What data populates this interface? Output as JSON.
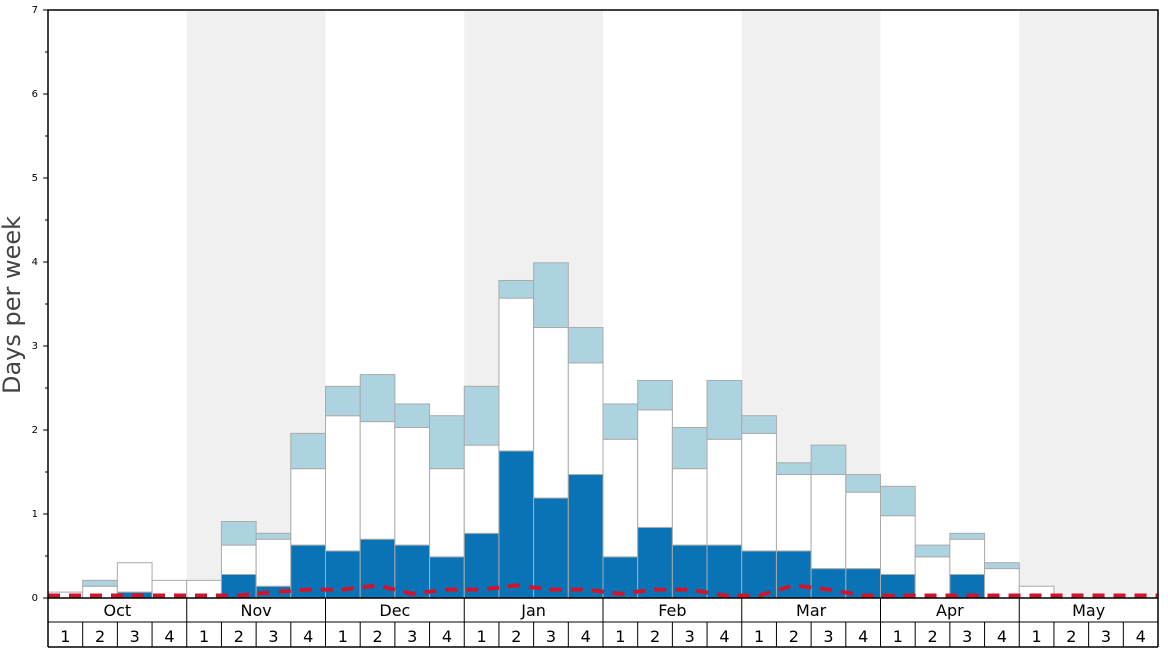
{
  "chart_data": {
    "type": "bar",
    "stacked": true,
    "ylabel": "Days per week",
    "ylim": [
      0,
      7
    ],
    "yticks": [
      "0",
      "1",
      "2",
      "3",
      "4",
      "5",
      "6",
      "7"
    ],
    "months": [
      "Oct",
      "Nov",
      "Dec",
      "Jan",
      "Feb",
      "Mar",
      "Apr",
      "May"
    ],
    "week_labels": [
      "1",
      "2",
      "3",
      "4"
    ],
    "shaded_months": [
      "Nov",
      "Jan",
      "Mar",
      "May"
    ],
    "colors": {
      "dark": "#0a73b5",
      "white": "#ffffff",
      "light": "#aed3e0",
      "dashed": "#d0142c",
      "shade": "#f0f0f0",
      "bar_border": "#aaaaaa"
    },
    "series": [
      {
        "values": [
          0,
          0,
          0.07,
          0,
          0,
          0.28,
          0.14,
          0.63,
          0.56,
          0.7,
          0.63,
          0.49,
          0.77,
          1.75,
          1.19,
          1.47,
          0.49,
          0.84,
          0.63,
          0.63,
          0.56,
          0.56,
          0.35,
          0.35,
          0.28,
          0,
          0.28,
          0,
          0,
          0,
          0,
          0
        ]
      },
      {
        "values": [
          0.07,
          0.14,
          0.35,
          0.21,
          0.21,
          0.35,
          0.56,
          0.91,
          1.61,
          1.4,
          1.4,
          1.05,
          1.05,
          1.82,
          2.03,
          1.33,
          1.4,
          1.4,
          0.91,
          1.26,
          1.4,
          0.91,
          1.12,
          0.91,
          0.7,
          0.49,
          0.42,
          0.35,
          0.14,
          0,
          0,
          0
        ]
      },
      {
        "values": [
          0,
          0.07,
          0,
          0,
          0,
          0.28,
          0.07,
          0.42,
          0.35,
          0.56,
          0.28,
          0.63,
          0.7,
          0.21,
          0.77,
          0.42,
          0.42,
          0.35,
          0.49,
          0.7,
          0.21,
          0.14,
          0.35,
          0.21,
          0.35,
          0.14,
          0.07,
          0.07,
          0,
          0,
          0,
          0
        ]
      }
    ],
    "dashed_line": [
      0.03,
      0.03,
      0.03,
      0.03,
      0.03,
      0.03,
      0.07,
      0.1,
      0.1,
      0.15,
      0.05,
      0.1,
      0.1,
      0.15,
      0.1,
      0.1,
      0.05,
      0.1,
      0.1,
      0.03,
      0.03,
      0.15,
      0.1,
      0.03,
      0.03,
      0.03,
      0.03,
      0.03,
      0.03,
      0.03,
      0.03,
      0.03
    ]
  }
}
